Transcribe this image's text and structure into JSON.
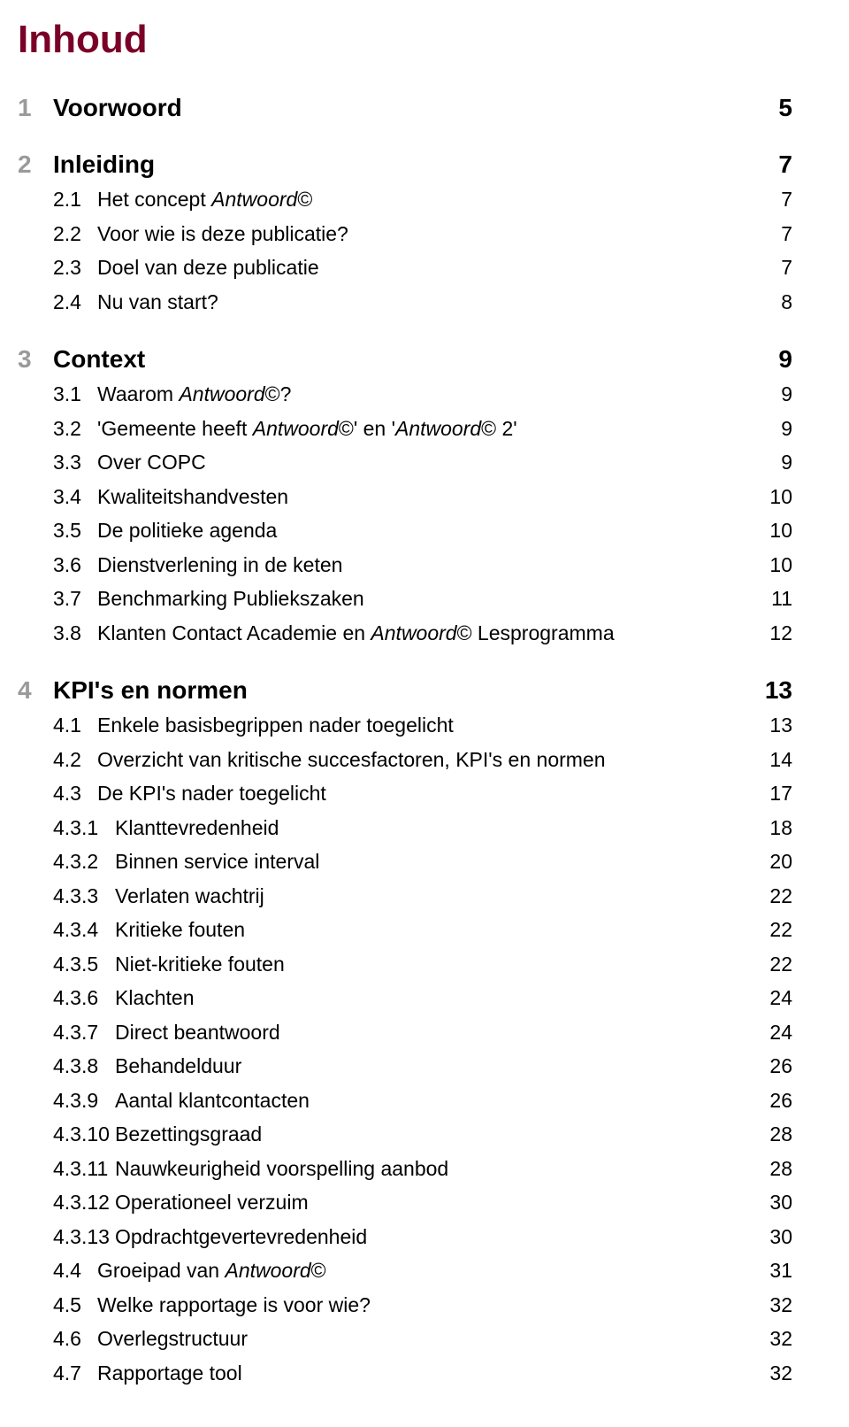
{
  "title_color": "#7a0028",
  "title": "Inhoud",
  "chapter_num_color": "#9a9a9a",
  "body_color": "#000000",
  "chapters": [
    {
      "num": "1",
      "label_parts": [
        {
          "t": "Voorwoord",
          "i": false
        }
      ],
      "page": "5",
      "entries": []
    },
    {
      "num": "2",
      "label_parts": [
        {
          "t": "Inleiding",
          "i": false
        }
      ],
      "page": "7",
      "entries": [
        {
          "num": "2.1",
          "wide": false,
          "label_parts": [
            {
              "t": "Het concept ",
              "i": false
            },
            {
              "t": "Antwoord",
              "i": true
            },
            {
              "t": "©",
              "i": false
            }
          ],
          "page": "7"
        },
        {
          "num": "2.2",
          "wide": false,
          "label_parts": [
            {
              "t": "Voor wie is deze publicatie?",
              "i": false
            }
          ],
          "page": "7"
        },
        {
          "num": "2.3",
          "wide": false,
          "label_parts": [
            {
              "t": "Doel van deze publicatie",
              "i": false
            }
          ],
          "page": "7"
        },
        {
          "num": "2.4",
          "wide": false,
          "label_parts": [
            {
              "t": "Nu van start?",
              "i": false
            }
          ],
          "page": "8"
        }
      ]
    },
    {
      "num": "3",
      "label_parts": [
        {
          "t": "Context",
          "i": false
        }
      ],
      "page": "9",
      "entries": [
        {
          "num": "3.1",
          "wide": false,
          "label_parts": [
            {
              "t": "Waarom ",
              "i": false
            },
            {
              "t": "Antwoord",
              "i": true
            },
            {
              "t": "©?",
              "i": false
            }
          ],
          "page": "9"
        },
        {
          "num": "3.2",
          "wide": false,
          "label_parts": [
            {
              "t": "'Gemeente heeft ",
              "i": false
            },
            {
              "t": "Antwoord",
              "i": true
            },
            {
              "t": "©' en '",
              "i": false
            },
            {
              "t": "Antwoord",
              "i": true
            },
            {
              "t": "© 2'",
              "i": false
            }
          ],
          "page": "9"
        },
        {
          "num": "3.3",
          "wide": false,
          "label_parts": [
            {
              "t": "Over COPC",
              "i": false
            }
          ],
          "page": "9"
        },
        {
          "num": "3.4",
          "wide": false,
          "label_parts": [
            {
              "t": "Kwaliteitshandvesten",
              "i": false
            }
          ],
          "page": "10"
        },
        {
          "num": "3.5",
          "wide": false,
          "label_parts": [
            {
              "t": "De politieke agenda",
              "i": false
            }
          ],
          "page": "10"
        },
        {
          "num": "3.6",
          "wide": false,
          "label_parts": [
            {
              "t": "Dienstverlening in de keten",
              "i": false
            }
          ],
          "page": "10"
        },
        {
          "num": "3.7",
          "wide": false,
          "label_parts": [
            {
              "t": "Benchmarking Publiekszaken",
              "i": false
            }
          ],
          "page": "11"
        },
        {
          "num": "3.8",
          "wide": false,
          "label_parts": [
            {
              "t": "Klanten Contact Academie en ",
              "i": false
            },
            {
              "t": "Antwoord",
              "i": true
            },
            {
              "t": "© Lesprogramma",
              "i": false
            }
          ],
          "page": "12"
        }
      ]
    },
    {
      "num": "4",
      "label_parts": [
        {
          "t": "KPI's en normen",
          "i": false
        }
      ],
      "page": "13",
      "entries": [
        {
          "num": "4.1",
          "wide": false,
          "label_parts": [
            {
              "t": "Enkele basisbegrippen nader toegelicht",
              "i": false
            }
          ],
          "page": "13"
        },
        {
          "num": "4.2",
          "wide": false,
          "label_parts": [
            {
              "t": "Overzicht van kritische succesfactoren, KPI's en normen",
              "i": false
            }
          ],
          "page": "14"
        },
        {
          "num": "4.3",
          "wide": false,
          "label_parts": [
            {
              "t": "De KPI's nader toegelicht",
              "i": false
            }
          ],
          "page": "17"
        },
        {
          "num": "4.3.1",
          "wide": true,
          "label_parts": [
            {
              "t": "Klanttevredenheid",
              "i": false
            }
          ],
          "page": "18"
        },
        {
          "num": "4.3.2",
          "wide": true,
          "label_parts": [
            {
              "t": "Binnen service interval",
              "i": false
            }
          ],
          "page": "20"
        },
        {
          "num": "4.3.3",
          "wide": true,
          "label_parts": [
            {
              "t": "Verlaten wachtrij",
              "i": false
            }
          ],
          "page": "22"
        },
        {
          "num": "4.3.4",
          "wide": true,
          "label_parts": [
            {
              "t": "Kritieke fouten",
              "i": false
            }
          ],
          "page": "22"
        },
        {
          "num": "4.3.5",
          "wide": true,
          "label_parts": [
            {
              "t": "Niet-kritieke fouten",
              "i": false
            }
          ],
          "page": "22"
        },
        {
          "num": "4.3.6",
          "wide": true,
          "label_parts": [
            {
              "t": "Klachten",
              "i": false
            }
          ],
          "page": "24"
        },
        {
          "num": "4.3.7",
          "wide": true,
          "label_parts": [
            {
              "t": "Direct beantwoord",
              "i": false
            }
          ],
          "page": "24"
        },
        {
          "num": "4.3.8",
          "wide": true,
          "label_parts": [
            {
              "t": "Behandelduur",
              "i": false
            }
          ],
          "page": "26"
        },
        {
          "num": "4.3.9",
          "wide": true,
          "label_parts": [
            {
              "t": "Aantal klantcontacten",
              "i": false
            }
          ],
          "page": "26"
        },
        {
          "num": "4.3.10",
          "wide": true,
          "label_parts": [
            {
              "t": "Bezettingsgraad",
              "i": false
            }
          ],
          "page": "28"
        },
        {
          "num": "4.3.11",
          "wide": true,
          "label_parts": [
            {
              "t": "Nauwkeurigheid voorspelling aanbod",
              "i": false
            }
          ],
          "page": "28"
        },
        {
          "num": "4.3.12",
          "wide": true,
          "label_parts": [
            {
              "t": "Operationeel verzuim",
              "i": false
            }
          ],
          "page": "30"
        },
        {
          "num": "4.3.13",
          "wide": true,
          "label_parts": [
            {
              "t": "Opdrachtgevertevredenheid",
              "i": false
            }
          ],
          "page": "30"
        },
        {
          "num": "4.4",
          "wide": false,
          "label_parts": [
            {
              "t": "Groeipad van ",
              "i": false
            },
            {
              "t": "Antwoord",
              "i": true
            },
            {
              "t": "©",
              "i": false
            }
          ],
          "page": "31"
        },
        {
          "num": "4.5",
          "wide": false,
          "label_parts": [
            {
              "t": "Welke rapportage is voor wie?",
              "i": false
            }
          ],
          "page": "32"
        },
        {
          "num": "4.6",
          "wide": false,
          "label_parts": [
            {
              "t": "Overlegstructuur",
              "i": false
            }
          ],
          "page": "32"
        },
        {
          "num": "4.7",
          "wide": false,
          "label_parts": [
            {
              "t": "Rapportage tool",
              "i": false
            }
          ],
          "page": "32"
        }
      ]
    }
  ]
}
